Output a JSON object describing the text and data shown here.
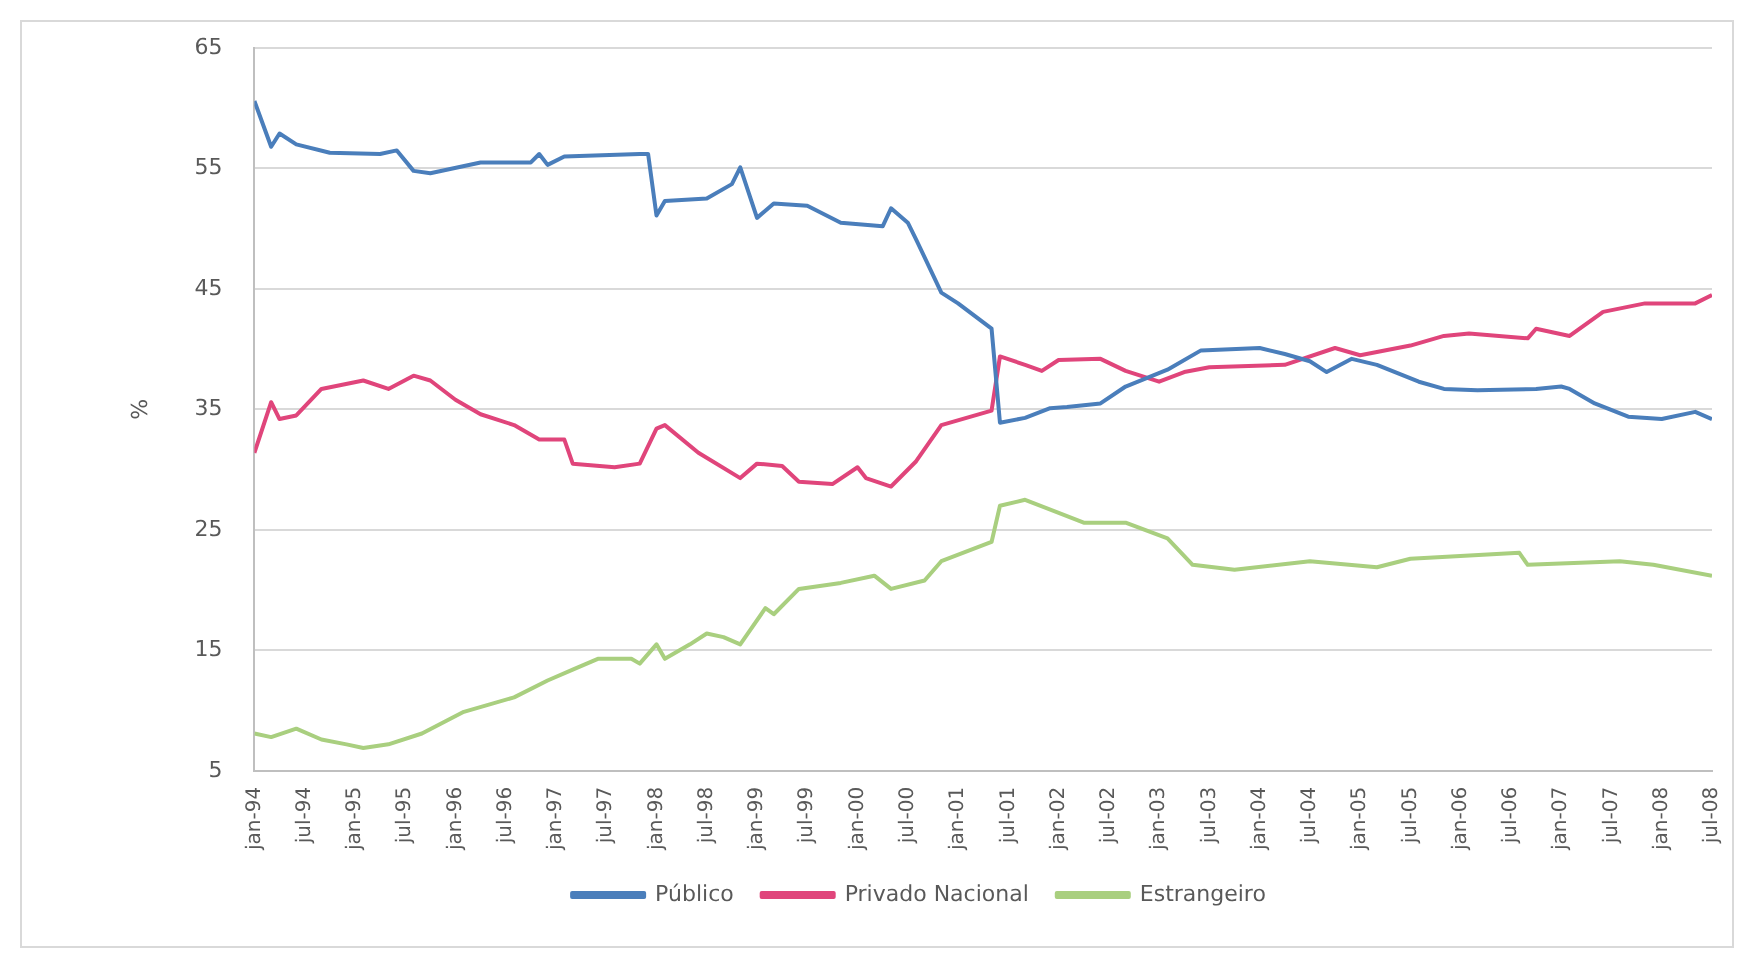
{
  "chart_data": {
    "type": "line",
    "ylabel": "%",
    "ylim": [
      5,
      65
    ],
    "yticks": [
      5,
      15,
      25,
      35,
      45,
      55,
      65
    ],
    "xlim": [
      "1994-01",
      "2008-07"
    ],
    "xticks": [
      {
        "value": "1994-01",
        "label": "jan-94"
      },
      {
        "value": "1994-07",
        "label": "jul-94"
      },
      {
        "value": "1995-01",
        "label": "jan-95"
      },
      {
        "value": "1995-07",
        "label": "jul-95"
      },
      {
        "value": "1996-01",
        "label": "jan-96"
      },
      {
        "value": "1996-07",
        "label": "jul-96"
      },
      {
        "value": "1997-01",
        "label": "jan-97"
      },
      {
        "value": "1997-07",
        "label": "jul-97"
      },
      {
        "value": "1998-01",
        "label": "jan-98"
      },
      {
        "value": "1998-07",
        "label": "jul-98"
      },
      {
        "value": "1999-01",
        "label": "jan-99"
      },
      {
        "value": "1999-07",
        "label": "jul-99"
      },
      {
        "value": "2000-01",
        "label": "jan-00"
      },
      {
        "value": "2000-07",
        "label": "jul-00"
      },
      {
        "value": "2001-01",
        "label": "jan-01"
      },
      {
        "value": "2001-07",
        "label": "jul-01"
      },
      {
        "value": "2002-01",
        "label": "jan-02"
      },
      {
        "value": "2002-07",
        "label": "jul-02"
      },
      {
        "value": "2003-01",
        "label": "jan-03"
      },
      {
        "value": "2003-07",
        "label": "jul-03"
      },
      {
        "value": "2004-01",
        "label": "jan-04"
      },
      {
        "value": "2004-07",
        "label": "jul-04"
      },
      {
        "value": "2005-01",
        "label": "jan-05"
      },
      {
        "value": "2005-07",
        "label": "jul-05"
      },
      {
        "value": "2006-01",
        "label": "jan-06"
      },
      {
        "value": "2006-07",
        "label": "jul-06"
      },
      {
        "value": "2007-01",
        "label": "jan-07"
      },
      {
        "value": "2007-07",
        "label": "jul-07"
      },
      {
        "value": "2008-01",
        "label": "jan-08"
      },
      {
        "value": "2008-07",
        "label": "jul-08"
      }
    ],
    "grid": "y",
    "legend": "bottom",
    "marker": "none",
    "line_style": "solid",
    "series": [
      {
        "name": "Público",
        "color": "#4a7ebb",
        "x": [
          "1994-01",
          "1994-03",
          "1994-04",
          "1994-06",
          "1994-10",
          "1995-04",
          "1995-06",
          "1995-08",
          "1995-10",
          "1996-04",
          "1996-10",
          "1996-11",
          "1996-12",
          "1997-02",
          "1997-11",
          "1997-12",
          "1998-01",
          "1998-02",
          "1998-07",
          "1998-10",
          "1998-11",
          "1999-01",
          "1999-03",
          "1999-07",
          "1999-11",
          "2000-04",
          "2000-05",
          "2000-07",
          "2000-08",
          "2000-11",
          "2001-01",
          "2001-05",
          "2001-06",
          "2001-09",
          "2001-12",
          "2002-02",
          "2002-06",
          "2002-09",
          "2003-02",
          "2003-06",
          "2004-01",
          "2004-04",
          "2004-07",
          "2004-09",
          "2004-12",
          "2005-03",
          "2005-08",
          "2005-11",
          "2006-03",
          "2006-10",
          "2007-01",
          "2007-02",
          "2007-05",
          "2007-09",
          "2008-01",
          "2008-05",
          "2008-07"
        ],
        "values": [
          60.6,
          56.8,
          57.9,
          57.0,
          56.3,
          56.2,
          56.5,
          54.8,
          54.6,
          55.5,
          55.5,
          56.2,
          55.3,
          56.0,
          56.2,
          56.2,
          51.1,
          52.3,
          52.5,
          53.7,
          55.1,
          50.9,
          52.1,
          51.9,
          50.5,
          50.2,
          51.7,
          50.5,
          49.1,
          44.7,
          43.8,
          41.7,
          33.9,
          34.3,
          35.1,
          35.2,
          35.5,
          36.9,
          38.3,
          39.9,
          40.1,
          39.6,
          39.0,
          38.1,
          39.2,
          38.7,
          37.3,
          36.7,
          36.6,
          36.7,
          36.9,
          36.7,
          35.5,
          34.4,
          34.2,
          34.8,
          34.2
        ]
      },
      {
        "name": "Privado Nacional",
        "color": "#e0457b",
        "x": [
          "1994-01",
          "1994-03",
          "1994-04",
          "1994-06",
          "1994-09",
          "1995-02",
          "1995-05",
          "1995-08",
          "1995-10",
          "1996-01",
          "1996-04",
          "1996-08",
          "1996-11",
          "1997-02",
          "1997-03",
          "1997-08",
          "1997-11",
          "1998-01",
          "1998-02",
          "1998-06",
          "1998-11",
          "1999-01",
          "1999-04",
          "1999-06",
          "1999-10",
          "2000-01",
          "2000-02",
          "2000-05",
          "2000-08",
          "2000-11",
          "2001-05",
          "2001-06",
          "2001-09",
          "2001-11",
          "2002-01",
          "2002-06",
          "2002-09",
          "2003-01",
          "2003-04",
          "2003-07",
          "2004-04",
          "2004-10",
          "2005-01",
          "2005-07",
          "2005-11",
          "2006-02",
          "2006-09",
          "2006-10",
          "2007-02",
          "2007-06",
          "2007-11",
          "2008-05",
          "2008-07"
        ],
        "values": [
          31.4,
          35.6,
          34.2,
          34.5,
          36.7,
          37.4,
          36.7,
          37.8,
          37.4,
          35.8,
          34.6,
          33.7,
          32.5,
          32.5,
          30.5,
          30.2,
          30.5,
          33.4,
          33.7,
          31.4,
          29.3,
          30.5,
          30.3,
          29.0,
          28.8,
          30.2,
          29.3,
          28.6,
          30.7,
          33.7,
          34.9,
          39.4,
          38.7,
          38.2,
          39.1,
          39.2,
          38.2,
          37.3,
          38.1,
          38.5,
          38.7,
          40.1,
          39.5,
          40.3,
          41.1,
          41.3,
          40.9,
          41.7,
          41.1,
          43.1,
          43.8,
          43.8,
          44.5
        ]
      },
      {
        "name": "Estrangeiro",
        "color": "#a9cf7f",
        "x": [
          "1994-01",
          "1994-03",
          "1994-06",
          "1994-09",
          "1994-12",
          "1995-02",
          "1995-05",
          "1995-09",
          "1996-02",
          "1996-08",
          "1996-12",
          "1997-03",
          "1997-06",
          "1997-10",
          "1997-11",
          "1998-01",
          "1998-02",
          "1998-05",
          "1998-07",
          "1998-09",
          "1998-11",
          "1999-02",
          "1999-03",
          "1999-06",
          "1999-11",
          "2000-03",
          "2000-05",
          "2000-09",
          "2000-11",
          "2001-05",
          "2001-06",
          "2001-09",
          "2002-04",
          "2002-09",
          "2003-02",
          "2003-05",
          "2003-10",
          "2004-07",
          "2005-03",
          "2005-07",
          "2006-08",
          "2006-09",
          "2007-08",
          "2007-12",
          "2008-07"
        ],
        "values": [
          8.1,
          7.8,
          8.5,
          7.6,
          7.2,
          6.9,
          7.2,
          8.1,
          9.9,
          11.1,
          12.5,
          13.4,
          14.3,
          14.3,
          13.9,
          15.5,
          14.3,
          15.5,
          16.4,
          16.1,
          15.5,
          18.5,
          18.0,
          20.1,
          20.6,
          21.2,
          20.1,
          20.8,
          22.4,
          24.0,
          27.0,
          27.5,
          25.6,
          25.6,
          24.3,
          22.1,
          21.7,
          22.4,
          21.9,
          22.6,
          23.1,
          22.1,
          22.4,
          22.1,
          21.2
        ]
      }
    ]
  }
}
